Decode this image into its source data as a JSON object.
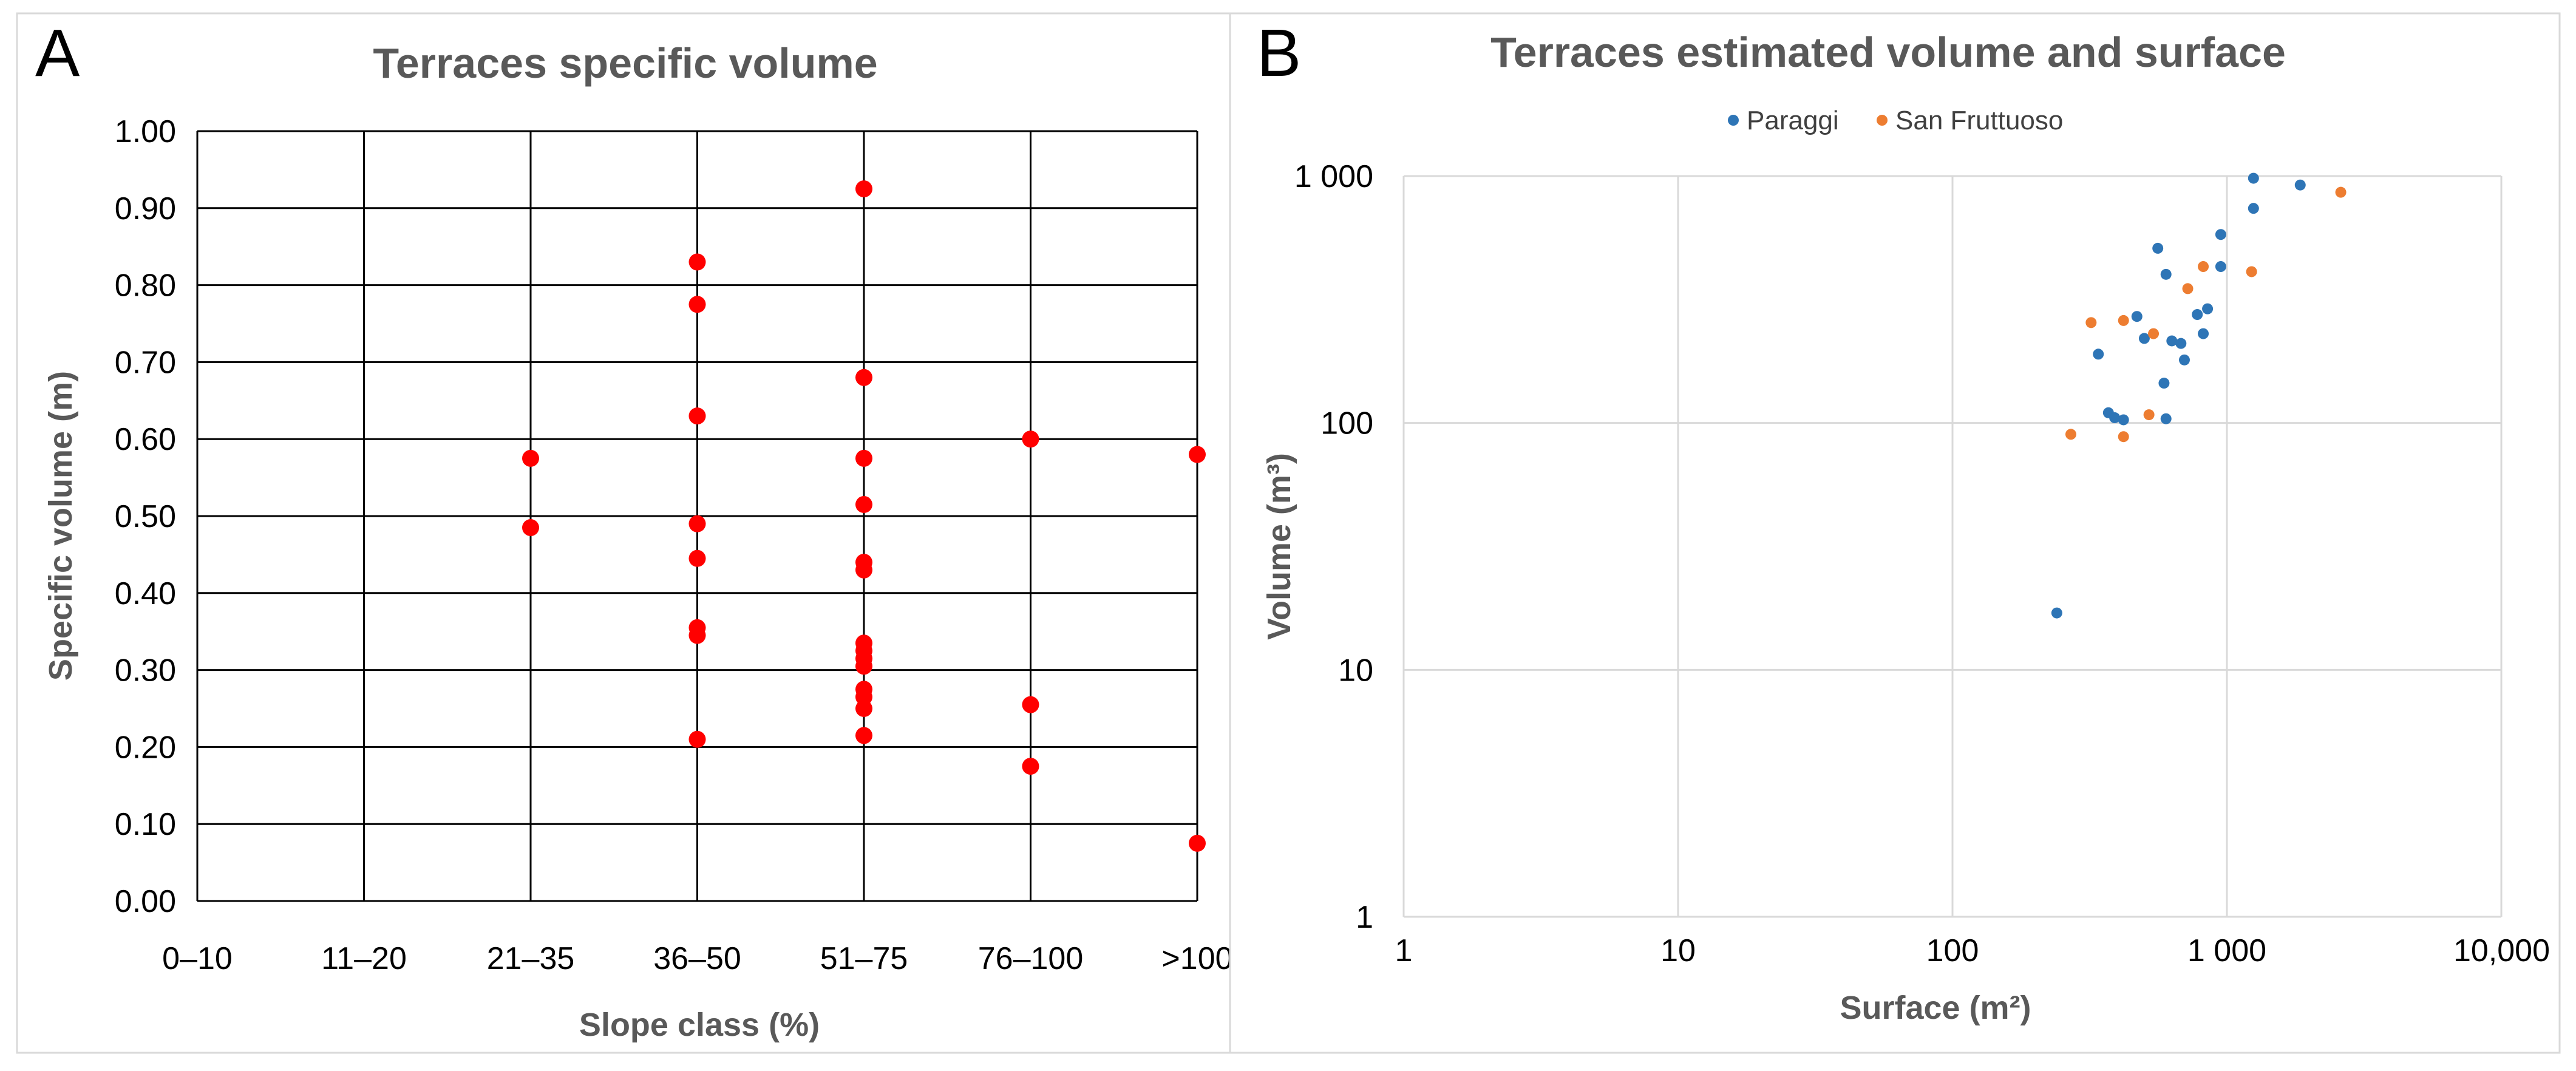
{
  "chart_data": [
    {
      "panel": "A",
      "type": "scatter",
      "title": "Terraces specific volume",
      "xlabel": "Slope class (%)",
      "ylabel": "Specific volume (m)",
      "categories": [
        "0–10",
        "11–20",
        "21–35",
        "36–50",
        "51–75",
        "76–100",
        ">100"
      ],
      "ylim": [
        0,
        1
      ],
      "yticks": [
        "0.00",
        "0.10",
        "0.20",
        "0.30",
        "0.40",
        "0.50",
        "0.60",
        "0.70",
        "0.80",
        "0.90",
        "1.00"
      ],
      "grid": true,
      "color": "#ff0000",
      "series": [
        {
          "name": "Specific volume",
          "points": [
            {
              "category": "21–35",
              "y": 0.575
            },
            {
              "category": "21–35",
              "y": 0.485
            },
            {
              "category": "36–50",
              "y": 0.83
            },
            {
              "category": "36–50",
              "y": 0.775
            },
            {
              "category": "36–50",
              "y": 0.63
            },
            {
              "category": "36–50",
              "y": 0.49
            },
            {
              "category": "36–50",
              "y": 0.445
            },
            {
              "category": "36–50",
              "y": 0.355
            },
            {
              "category": "36–50",
              "y": 0.345
            },
            {
              "category": "36–50",
              "y": 0.21
            },
            {
              "category": "51–75",
              "y": 0.925
            },
            {
              "category": "51–75",
              "y": 0.68
            },
            {
              "category": "51–75",
              "y": 0.575
            },
            {
              "category": "51–75",
              "y": 0.515
            },
            {
              "category": "51–75",
              "y": 0.44
            },
            {
              "category": "51–75",
              "y": 0.43
            },
            {
              "category": "51–75",
              "y": 0.335
            },
            {
              "category": "51–75",
              "y": 0.325
            },
            {
              "category": "51–75",
              "y": 0.315
            },
            {
              "category": "51–75",
              "y": 0.305
            },
            {
              "category": "51–75",
              "y": 0.275
            },
            {
              "category": "51–75",
              "y": 0.265
            },
            {
              "category": "51–75",
              "y": 0.25
            },
            {
              "category": "51–75",
              "y": 0.215
            },
            {
              "category": "76–100",
              "y": 0.6
            },
            {
              "category": "76–100",
              "y": 0.255
            },
            {
              "category": "76–100",
              "y": 0.175
            },
            {
              "category": ">100",
              "y": 0.58
            },
            {
              "category": ">100",
              "y": 0.075
            }
          ]
        }
      ]
    },
    {
      "panel": "B",
      "type": "scatter",
      "title": "Terraces estimated volume and surface",
      "xlabel": "Surface (m²)",
      "ylabel": "Volume (m³)",
      "xscale": "log",
      "yscale": "log",
      "xlim": [
        1,
        10000
      ],
      "ylim": [
        1,
        1000
      ],
      "xticks": [
        {
          "value": 1,
          "label": "1"
        },
        {
          "value": 10,
          "label": "10"
        },
        {
          "value": 100,
          "label": "100"
        },
        {
          "value": 1000,
          "label": "1 000"
        },
        {
          "value": 10000,
          "label": "10,000"
        }
      ],
      "yticks": [
        {
          "value": 1,
          "label": "1"
        },
        {
          "value": 10,
          "label": "10"
        },
        {
          "value": 100,
          "label": "100"
        },
        {
          "value": 1000,
          "label": "1 000"
        }
      ],
      "grid": true,
      "legend_position": "top",
      "series": [
        {
          "name": "Paraggi",
          "color": "#2e75b6",
          "points": [
            {
              "x": 1250,
              "y": 980
            },
            {
              "x": 1850,
              "y": 920
            },
            {
              "x": 1250,
              "y": 740
            },
            {
              "x": 950,
              "y": 580
            },
            {
              "x": 560,
              "y": 510
            },
            {
              "x": 950,
              "y": 430
            },
            {
              "x": 600,
              "y": 400
            },
            {
              "x": 850,
              "y": 290
            },
            {
              "x": 780,
              "y": 275
            },
            {
              "x": 470,
              "y": 270
            },
            {
              "x": 820,
              "y": 230
            },
            {
              "x": 500,
              "y": 220
            },
            {
              "x": 630,
              "y": 215
            },
            {
              "x": 680,
              "y": 210
            },
            {
              "x": 340,
              "y": 190
            },
            {
              "x": 700,
              "y": 180
            },
            {
              "x": 590,
              "y": 145
            },
            {
              "x": 370,
              "y": 110
            },
            {
              "x": 390,
              "y": 105
            },
            {
              "x": 420,
              "y": 103
            },
            {
              "x": 600,
              "y": 104
            },
            {
              "x": 240,
              "y": 17
            }
          ]
        },
        {
          "name": "San Fruttuoso",
          "color": "#ed7d31",
          "points": [
            {
              "x": 2600,
              "y": 860
            },
            {
              "x": 820,
              "y": 430
            },
            {
              "x": 1230,
              "y": 410
            },
            {
              "x": 720,
              "y": 350
            },
            {
              "x": 420,
              "y": 260
            },
            {
              "x": 320,
              "y": 255
            },
            {
              "x": 540,
              "y": 230
            },
            {
              "x": 520,
              "y": 108
            },
            {
              "x": 270,
              "y": 90
            },
            {
              "x": 420,
              "y": 88
            }
          ]
        }
      ]
    }
  ]
}
